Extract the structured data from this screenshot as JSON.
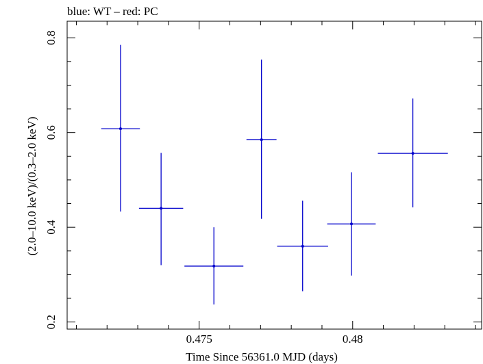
{
  "chart_data": {
    "type": "scatter",
    "title": "blue: WT – red: PC",
    "xlabel": "Time Since 56361.0 MJD (days)",
    "ylabel": "(2.0–10.0 keV)/(0.3–2.0 keV)",
    "xlim": [
      0.4707,
      0.4842
    ],
    "ylim": [
      0.185,
      0.835
    ],
    "x_ticks": [
      0.475,
      0.48
    ],
    "x_tick_labels": [
      "0.475",
      "0.48"
    ],
    "y_ticks": [
      0.2,
      0.4,
      0.6,
      0.8
    ],
    "y_tick_labels": [
      "0.2",
      "0.4",
      "0.6",
      "0.8"
    ],
    "series": [
      {
        "name": "WT",
        "color": "#0000cc",
        "points": [
          {
            "x": 0.47244,
            "y": 0.608,
            "xerr": 0.00063,
            "y_low": 0.433,
            "y_high": 0.785
          },
          {
            "x": 0.47376,
            "y": 0.44,
            "xerr": 0.00072,
            "y_low": 0.32,
            "y_high": 0.557
          },
          {
            "x": 0.47548,
            "y": 0.318,
            "xerr": 0.00096,
            "y_low": 0.237,
            "y_high": 0.4
          },
          {
            "x": 0.47703,
            "y": 0.585,
            "xerr": 0.00049,
            "y_low": 0.418,
            "y_high": 0.754
          },
          {
            "x": 0.47837,
            "y": 0.36,
            "xerr": 0.00083,
            "y_low": 0.265,
            "y_high": 0.456
          },
          {
            "x": 0.47996,
            "y": 0.407,
            "xerr": 0.00079,
            "y_low": 0.298,
            "y_high": 0.516
          },
          {
            "x": 0.48196,
            "y": 0.556,
            "xerr": 0.00114,
            "y_low": 0.442,
            "y_high": 0.672
          }
        ]
      }
    ]
  }
}
